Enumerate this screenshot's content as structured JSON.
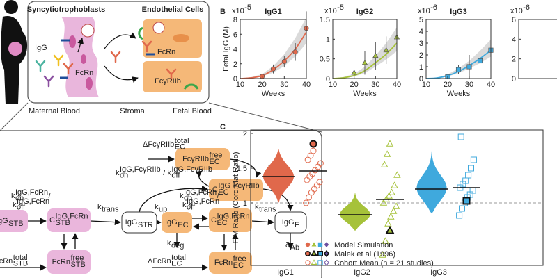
{
  "figure_top": {
    "headers": [
      "Syncytiotrophoblasts",
      "Endothelial Cells"
    ],
    "labels": [
      "IgG",
      "FcRn",
      "FcRn",
      "FcγRIIb"
    ],
    "regions": [
      "Maternal Blood",
      "Stroma",
      "Fetal Blood"
    ]
  },
  "pathway": {
    "nodes": [
      [
        {
          "text": "IgG",
          "sub": "STB"
        }
      ],
      [
        {
          "text": "C",
          "sup": "IgG,FcRn",
          "sub": "STB"
        }
      ],
      [
        {
          "text": "IgG",
          "sub": "STR"
        }
      ],
      [
        {
          "text": "IgG",
          "sub": "EC"
        }
      ],
      [
        {
          "text": "C",
          "sup": "IgG,FcRn",
          "sub": "EC"
        }
      ],
      [
        {
          "text": "IgG",
          "sub": "F"
        }
      ],
      [
        {
          "text": "FcγRIIb",
          "sup": "free",
          "sub": "EC"
        }
      ],
      [
        {
          "text": "C",
          "sup": "IgG-FcγRIIb",
          "sub": "EC"
        }
      ],
      [
        {
          "text": "FcRn",
          "sup": "free",
          "sub": "STB"
        }
      ],
      [
        {
          "text": "FcRn",
          "sup": "free",
          "sub": "EC"
        }
      ]
    ],
    "labels": [
      [
        {
          "text": "ΔFcγRIIb",
          "sup": "total",
          "sub": "EC"
        }
      ],
      [
        {
          "text": "ΔFcRn",
          "sup": "total",
          "sub": "EC"
        }
      ],
      [
        {
          "text": "FcRn",
          "sup": "total",
          "sub": "STB"
        }
      ],
      [
        {
          "text": "k",
          "sub": "trans"
        }
      ],
      [
        {
          "text": "k",
          "sub": "up"
        }
      ],
      [
        {
          "text": "k",
          "sub": "deg"
        }
      ],
      [
        {
          "text": "k",
          "sub": "trans"
        }
      ],
      [
        {
          "text": "k",
          "sub": "trans"
        }
      ],
      [
        {
          "text": "δ",
          "sub": "Ab"
        }
      ],
      [
        {
          "text": "k",
          "sup": "IgG,FcγRIIb",
          "sub": "on"
        },
        {
          "text": " / k",
          "sup": "IgG,FcγRIIb",
          "sub": "off"
        }
      ],
      [
        {
          "text": "k",
          "sup": "IgG,FcRn",
          "sub": "on"
        },
        {
          "text": "/"
        }
      ],
      [
        {
          "text": "k",
          "sup": "IgG,FcRn",
          "sub": "off"
        }
      ],
      [
        {
          "text": "k",
          "sup": "IgG,FcRn",
          "sub": "on"
        },
        {
          "text": "/"
        }
      ],
      [
        {
          "text": "k",
          "sup": "IgG,FcRn",
          "sub": "off"
        }
      ]
    ]
  },
  "panel_labels": [
    "B",
    "C"
  ],
  "chart_data": [
    {
      "type": "line",
      "title": "IgG1",
      "multiplier": [
        {
          "text": "x10",
          "sup": "-5"
        }
      ],
      "xlabel": "Weeks",
      "ylabel": "Fetal IgG (M)",
      "xlim": [
        10,
        40
      ],
      "xticks": [
        10,
        20,
        30,
        40
      ],
      "ylim": [
        0,
        8
      ],
      "yticks": [
        0,
        2,
        4,
        6,
        8
      ],
      "color": "#e0684b",
      "marker": "circle",
      "band": {
        "x": [
          10,
          15,
          20,
          25,
          30,
          35,
          40
        ],
        "lower": [
          0,
          0.05,
          0.3,
          0.8,
          1.7,
          3,
          4.8
        ],
        "upper": [
          0,
          0.2,
          0.6,
          1.7,
          3.3,
          5.5,
          8.3
        ]
      },
      "line": {
        "x": [
          10,
          15,
          20,
          25,
          30,
          35,
          40
        ],
        "values": [
          0,
          0.1,
          0.4,
          1.2,
          2.4,
          4,
          6.3
        ]
      },
      "points": {
        "x": [
          20,
          25,
          30,
          35,
          40
        ],
        "values": [
          0.3,
          1.3,
          2.3,
          3.6,
          6.8
        ],
        "errors": [
          0.2,
          0.6,
          0.8,
          1.2,
          2.3
        ]
      }
    },
    {
      "type": "line",
      "title": "IgG2",
      "multiplier": [
        {
          "text": "x10",
          "sup": "-5"
        }
      ],
      "xlabel": "Weeks",
      "xlim": [
        10,
        40
      ],
      "xticks": [
        10,
        20,
        30,
        40
      ],
      "ylim": [
        0,
        1.5
      ],
      "yticks": [
        0,
        0.5,
        1,
        1.5
      ],
      "color": "#a6c23a",
      "marker": "triangle",
      "band": {
        "x": [
          10,
          15,
          20,
          25,
          30,
          35,
          40
        ],
        "lower": [
          0,
          0.01,
          0.05,
          0.14,
          0.3,
          0.48,
          0.7
        ],
        "upper": [
          0,
          0.04,
          0.12,
          0.3,
          0.58,
          0.9,
          1.3
        ]
      },
      "line": {
        "x": [
          10,
          15,
          20,
          25,
          30,
          35,
          40
        ],
        "values": [
          0,
          0.02,
          0.08,
          0.2,
          0.4,
          0.62,
          0.9
        ]
      },
      "points": {
        "x": [
          20,
          25,
          30,
          35,
          40
        ],
        "values": [
          0.15,
          0.4,
          0.58,
          0.72,
          1.05
        ],
        "errors": [
          0.08,
          0.3,
          0.35,
          0.35,
          0.15
        ]
      }
    },
    {
      "type": "line",
      "title": "IgG3",
      "multiplier": [
        {
          "text": "x10",
          "sup": "-6"
        }
      ],
      "xlabel": "Weeks",
      "xlim": [
        10,
        40
      ],
      "xticks": [
        10,
        20,
        30,
        40
      ],
      "ylim": [
        0,
        5
      ],
      "yticks": [
        0,
        1,
        2,
        3,
        4,
        5
      ],
      "color": "#3fa9dd",
      "marker": "square",
      "band": {
        "x": [
          10,
          15,
          20,
          25,
          30,
          35,
          40
        ],
        "lower": [
          0,
          0.03,
          0.18,
          0.45,
          0.85,
          1.3,
          1.85
        ],
        "upper": [
          0,
          0.08,
          0.35,
          0.85,
          1.5,
          2.35,
          3.3
        ]
      },
      "line": {
        "x": [
          10,
          15,
          20,
          25,
          30,
          35,
          40
        ],
        "values": [
          0,
          0.05,
          0.25,
          0.6,
          1.1,
          1.7,
          2.4
        ]
      },
      "points": {
        "x": [
          20,
          25,
          30,
          35,
          40
        ],
        "values": [
          0.15,
          0.75,
          1,
          1.5,
          2.4
        ],
        "errors": [
          0.2,
          0.4,
          1,
          0.8,
          0.5
        ]
      }
    },
    {
      "type": "line",
      "multiplier": [
        {
          "text": "x10",
          "sup": "-6"
        }
      ],
      "ylim": [
        0,
        6
      ],
      "yticks": [
        0,
        2,
        4,
        6
      ],
      "color": "#6b4fa0"
    },
    {
      "type": "violin",
      "ylabel": "F:M Ratio (Cord:Mat Ratio)",
      "categories": [
        "IgG1",
        "IgG2",
        "IgG3"
      ],
      "ylim": [
        0.1,
        2.05
      ],
      "yticks": [
        1,
        1.5,
        2
      ],
      "reference_line": 1,
      "colors": [
        "#e0684b",
        "#a6c23a",
        "#3fa9dd",
        "#6b4fa0"
      ],
      "markers": [
        "circle",
        "triangle",
        "square",
        "diamond"
      ],
      "violins": [
        {
          "min": 1,
          "max": 1.78,
          "median": 1.38
        },
        {
          "min": 0.6,
          "max": 1.15,
          "median": 0.83
        },
        {
          "min": 0.85,
          "max": 1.75,
          "median": 1.2
        }
      ],
      "cohort": [
        [
          1,
          1.08,
          1.15,
          1.2,
          1.25,
          1.3,
          1.33,
          1.38,
          1.42,
          1.47,
          1.52,
          1.57,
          1.62,
          1.68,
          1.75
        ],
        [
          0.25,
          0.45,
          0.7,
          0.8,
          0.88,
          0.95,
          1,
          1.05,
          1.1,
          1.15,
          1.25,
          1.4,
          1.55,
          1.7,
          1.85
        ],
        [
          0.82,
          0.92,
          1,
          1.08,
          1.12,
          1.18,
          1.22,
          1.27,
          1.32,
          1.4,
          1.5,
          1.62,
          1.95
        ]
      ],
      "cohort_mean": [
        1.46,
        1.05,
        1.22
      ],
      "malek": [
        1.85,
        0.6,
        1.03
      ],
      "legend": [
        "Model Simulation",
        "Malek et al (1996)",
        "Cohort Mean (n = 21 studies)"
      ]
    }
  ]
}
